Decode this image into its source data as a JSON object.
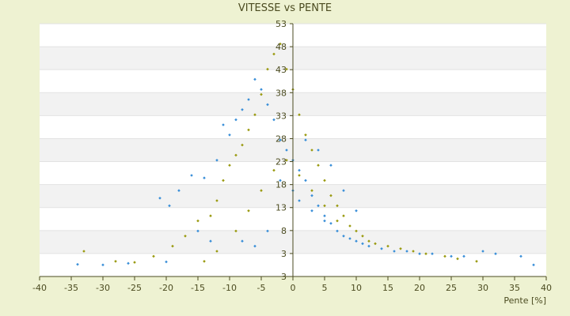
{
  "chart_data": {
    "type": "scatter",
    "title": "VITESSE vs PENTE",
    "xlabel": "Pente [%]",
    "ylabel": "",
    "xlim": [
      -40,
      40
    ],
    "ylim": [
      3,
      53
    ],
    "xticks": [
      "-40",
      "-35",
      "-30",
      "-25",
      "-20",
      "-15",
      "-10",
      "-5",
      "0",
      "5",
      "10",
      "15",
      "20",
      "25",
      "30",
      "35",
      "40"
    ],
    "yticks": [
      "3",
      "3",
      "8",
      "13",
      "18",
      "23",
      "28",
      "33",
      "38",
      "43",
      "48",
      "53"
    ],
    "grid": true,
    "legend": "none",
    "colors": {
      "page_background": "#eef2d2",
      "plot_band_light": "#ffffff",
      "plot_band_dark": "#f2f2f2",
      "axis": "#4b4b20",
      "series_a": "#3a8fd8",
      "series_b": "#9a9a10"
    },
    "series": [
      {
        "color": "#3a8fd8",
        "marker": "diamond",
        "points": [
          [
            -34,
            5.4
          ],
          [
            -30,
            5.3
          ],
          [
            -26,
            5.6
          ],
          [
            -20,
            5.9
          ],
          [
            -19.5,
            17
          ],
          [
            -21,
            18.5
          ],
          [
            -18,
            20
          ],
          [
            -16,
            23
          ],
          [
            -14,
            22.5
          ],
          [
            -12,
            26
          ],
          [
            -11,
            33
          ],
          [
            -10,
            31
          ],
          [
            -9,
            34
          ],
          [
            -8,
            36
          ],
          [
            -7,
            38
          ],
          [
            -6,
            42
          ],
          [
            -5,
            40
          ],
          [
            -4,
            37
          ],
          [
            -3,
            34
          ],
          [
            -2,
            30
          ],
          [
            -1,
            28
          ],
          [
            0,
            26
          ],
          [
            1,
            24
          ],
          [
            2,
            22
          ],
          [
            3,
            19
          ],
          [
            4,
            17
          ],
          [
            5,
            15
          ],
          [
            6,
            13.5
          ],
          [
            7,
            12
          ],
          [
            8,
            11
          ],
          [
            9,
            10.5
          ],
          [
            10,
            10
          ],
          [
            11,
            9.5
          ],
          [
            12,
            9
          ],
          [
            14,
            8.5
          ],
          [
            16,
            8
          ],
          [
            18,
            8
          ],
          [
            20,
            7.5
          ],
          [
            22,
            7.5
          ],
          [
            25,
            7
          ],
          [
            27,
            7
          ],
          [
            30,
            8
          ],
          [
            32,
            7.5
          ],
          [
            36,
            7
          ],
          [
            38,
            5.3
          ],
          [
            -13,
            10
          ],
          [
            -15,
            12
          ],
          [
            -8,
            10
          ],
          [
            -6,
            9
          ],
          [
            -4,
            12
          ],
          [
            2,
            30
          ],
          [
            4,
            28
          ],
          [
            6,
            25
          ],
          [
            8,
            20
          ],
          [
            10,
            16
          ],
          [
            -2,
            22
          ],
          [
            0,
            20
          ],
          [
            1,
            18
          ],
          [
            3,
            16
          ],
          [
            5,
            14
          ]
        ]
      },
      {
        "color": "#9a9a10",
        "marker": "diamond",
        "points": [
          [
            -33,
            8
          ],
          [
            -28,
            6
          ],
          [
            -25,
            5.8
          ],
          [
            -22,
            7
          ],
          [
            -19,
            9
          ],
          [
            -17,
            11
          ],
          [
            -15,
            14
          ],
          [
            -13,
            15
          ],
          [
            -12,
            18
          ],
          [
            -11,
            22
          ],
          [
            -10,
            25
          ],
          [
            -9,
            27
          ],
          [
            -8,
            29
          ],
          [
            -7,
            32
          ],
          [
            -6,
            35
          ],
          [
            -5,
            39
          ],
          [
            -4,
            44
          ],
          [
            -3,
            47
          ],
          [
            -2,
            49
          ],
          [
            -1,
            44
          ],
          [
            0,
            40
          ],
          [
            1,
            35
          ],
          [
            2,
            31
          ],
          [
            3,
            28
          ],
          [
            4,
            25
          ],
          [
            5,
            22
          ],
          [
            6,
            19
          ],
          [
            7,
            17
          ],
          [
            8,
            15
          ],
          [
            9,
            13
          ],
          [
            10,
            12
          ],
          [
            11,
            11
          ],
          [
            12,
            10
          ],
          [
            13,
            9.5
          ],
          [
            15,
            9
          ],
          [
            17,
            8.5
          ],
          [
            19,
            8
          ],
          [
            21,
            7.5
          ],
          [
            24,
            7
          ],
          [
            26,
            6.5
          ],
          [
            29,
            6
          ],
          [
            -14,
            6
          ],
          [
            -12,
            8
          ],
          [
            -9,
            12
          ],
          [
            -7,
            16
          ],
          [
            -5,
            20
          ],
          [
            -3,
            24
          ],
          [
            -1,
            26
          ],
          [
            1,
            23
          ],
          [
            3,
            20
          ],
          [
            5,
            17
          ],
          [
            7,
            14
          ]
        ]
      }
    ]
  }
}
